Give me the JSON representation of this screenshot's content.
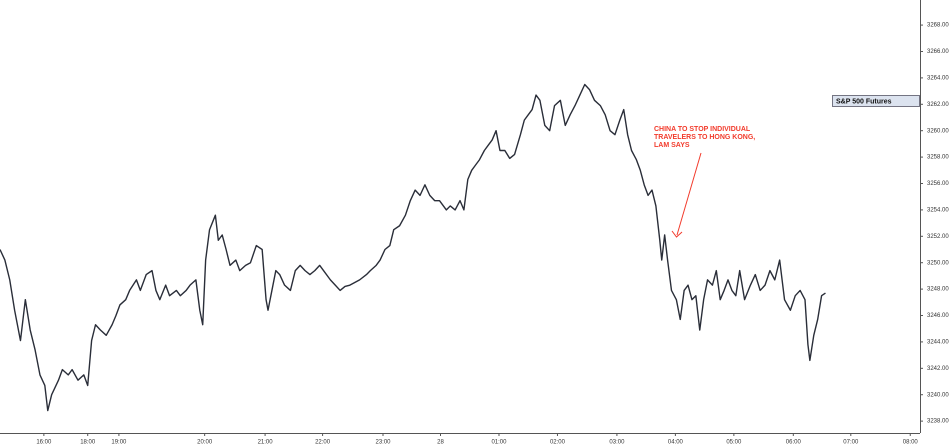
{
  "chart_data": {
    "type": "line",
    "annotation": [
      "CHINA TO STOP INDIVIDUAL",
      "TRAVELERS TO HONG KONG,",
      "LAM SAYS"
    ],
    "xlim": [
      0,
      944
    ],
    "ylim": [
      3237.1,
      3269.9
    ],
    "xticks": [
      {
        "value": 45,
        "label": "16:00"
      },
      {
        "value": 90,
        "label": "18:00"
      },
      {
        "value": 122,
        "label": "19:00"
      },
      {
        "value": 210,
        "label": "20:00"
      },
      {
        "value": 272,
        "label": "21:00"
      },
      {
        "value": 331,
        "label": "22:00"
      },
      {
        "value": 393,
        "label": "23:00"
      },
      {
        "value": 452,
        "label": "28"
      },
      {
        "value": 512,
        "label": "01:00"
      },
      {
        "value": 572,
        "label": "02:00"
      },
      {
        "value": 633,
        "label": "03:00"
      },
      {
        "value": 693,
        "label": "04:00"
      },
      {
        "value": 753,
        "label": "05:00"
      },
      {
        "value": 814,
        "label": "06:00"
      },
      {
        "value": 873,
        "label": "07:00"
      },
      {
        "value": 934,
        "label": "08:00"
      }
    ],
    "yticks": [
      {
        "value": 3238,
        "label": "3238.00"
      },
      {
        "value": 3240,
        "label": "3240.00"
      },
      {
        "value": 3242,
        "label": "3242.00"
      },
      {
        "value": 3244,
        "label": "3244.00"
      },
      {
        "value": 3246,
        "label": "3246.00"
      },
      {
        "value": 3248,
        "label": "3248.00"
      },
      {
        "value": 3250,
        "label": "3250.00"
      },
      {
        "value": 3252,
        "label": "3252.00"
      },
      {
        "value": 3254,
        "label": "3254.00"
      },
      {
        "value": 3256,
        "label": "3256.00"
      },
      {
        "value": 3258,
        "label": "3258.00"
      },
      {
        "value": 3260,
        "label": "3260.00"
      },
      {
        "value": 3262,
        "label": "3262.00"
      },
      {
        "value": 3264,
        "label": "3264.00"
      },
      {
        "value": 3266,
        "label": "3266.00"
      },
      {
        "value": 3268,
        "label": "3268.00"
      }
    ],
    "grid": false,
    "x": [
      0,
      5,
      10,
      15,
      21,
      26,
      31,
      36,
      41,
      46,
      49,
      53,
      60,
      64,
      70,
      74,
      80,
      86,
      90,
      94,
      98,
      103,
      109,
      115,
      119,
      123,
      129,
      133,
      140,
      144,
      150,
      156,
      160,
      164,
      170,
      174,
      181,
      185,
      191,
      195,
      201,
      205,
      208,
      211,
      215,
      221,
      224,
      228,
      232,
      236,
      242,
      246,
      252,
      257,
      263,
      269,
      273,
      275,
      279,
      283,
      287,
      292,
      298,
      303,
      308,
      313,
      318,
      323,
      328,
      333,
      339,
      344,
      349,
      354,
      359,
      364,
      369,
      376,
      380,
      386,
      390,
      395,
      400,
      404,
      410,
      416,
      421,
      426,
      431,
      436,
      441,
      446,
      451,
      458,
      462,
      467,
      472,
      476,
      480,
      484,
      488,
      492,
      497,
      501,
      505,
      509,
      513,
      518,
      523,
      528,
      534,
      538,
      542,
      546,
      550,
      554,
      559,
      564,
      569,
      575,
      580,
      585,
      590,
      595,
      600,
      605,
      610,
      616,
      621,
      626,
      631,
      636,
      640,
      644,
      648,
      653,
      657,
      661,
      665,
      669,
      673,
      677,
      679,
      682,
      685,
      689,
      694,
      698,
      702,
      706,
      710,
      714,
      718,
      722,
      726,
      731,
      735,
      739,
      743,
      747,
      751,
      755,
      759,
      764,
      770,
      775,
      780,
      785,
      790,
      795,
      800,
      805,
      811,
      816,
      821,
      826,
      829,
      831,
      835,
      839,
      843,
      847
    ],
    "series": [
      {
        "name": "S&P 500 Futures",
        "color": "#2a2e39",
        "values": [
          3251.0,
          3250.2,
          3248.7,
          3246.4,
          3244.1,
          3247.2,
          3244.9,
          3243.4,
          3241.5,
          3240.7,
          3238.8,
          3240.0,
          3241.1,
          3241.9,
          3241.5,
          3241.9,
          3241.1,
          3241.5,
          3240.7,
          3244.1,
          3245.3,
          3244.9,
          3244.5,
          3245.3,
          3246.0,
          3246.8,
          3247.2,
          3247.9,
          3248.7,
          3247.9,
          3249.1,
          3249.4,
          3247.9,
          3247.2,
          3248.3,
          3247.5,
          3247.9,
          3247.5,
          3247.9,
          3248.3,
          3248.7,
          3246.4,
          3245.3,
          3250.2,
          3252.5,
          3253.6,
          3251.7,
          3252.1,
          3251.0,
          3249.8,
          3250.2,
          3249.4,
          3249.8,
          3250.0,
          3251.3,
          3251.0,
          3247.2,
          3246.4,
          3247.9,
          3249.4,
          3249.1,
          3248.3,
          3247.9,
          3249.4,
          3249.8,
          3249.4,
          3249.1,
          3249.4,
          3249.8,
          3249.3,
          3248.7,
          3248.3,
          3247.9,
          3248.2,
          3248.3,
          3248.5,
          3248.7,
          3249.1,
          3249.4,
          3249.8,
          3250.2,
          3251.0,
          3251.3,
          3252.5,
          3252.8,
          3253.6,
          3254.7,
          3255.5,
          3255.1,
          3255.9,
          3255.1,
          3254.7,
          3254.7,
          3254.0,
          3254.3,
          3254.0,
          3254.7,
          3254.0,
          3256.3,
          3257.0,
          3257.4,
          3257.8,
          3258.5,
          3258.9,
          3259.3,
          3260.0,
          3258.5,
          3258.5,
          3257.9,
          3258.2,
          3259.7,
          3260.8,
          3261.2,
          3261.6,
          3262.7,
          3262.3,
          3260.4,
          3260.0,
          3261.9,
          3262.3,
          3260.4,
          3261.2,
          3261.9,
          3262.7,
          3263.5,
          3263.1,
          3262.3,
          3261.9,
          3261.2,
          3260.0,
          3259.7,
          3260.8,
          3261.6,
          3259.7,
          3258.5,
          3257.8,
          3257.0,
          3255.9,
          3255.1,
          3255.5,
          3254.3,
          3251.7,
          3250.2,
          3252.1,
          3250.2,
          3247.9,
          3247.2,
          3245.7,
          3247.9,
          3248.3,
          3247.2,
          3247.5,
          3244.9,
          3247.2,
          3248.7,
          3248.3,
          3249.4,
          3247.2,
          3247.9,
          3248.7,
          3247.9,
          3247.5,
          3249.4,
          3247.2,
          3248.3,
          3249.1,
          3247.9,
          3248.3,
          3249.4,
          3248.7,
          3250.2,
          3247.2,
          3246.4,
          3247.5,
          3247.9,
          3247.2,
          3243.8,
          3242.6,
          3244.5,
          3245.7,
          3247.5,
          3247.7
        ]
      }
    ]
  }
}
